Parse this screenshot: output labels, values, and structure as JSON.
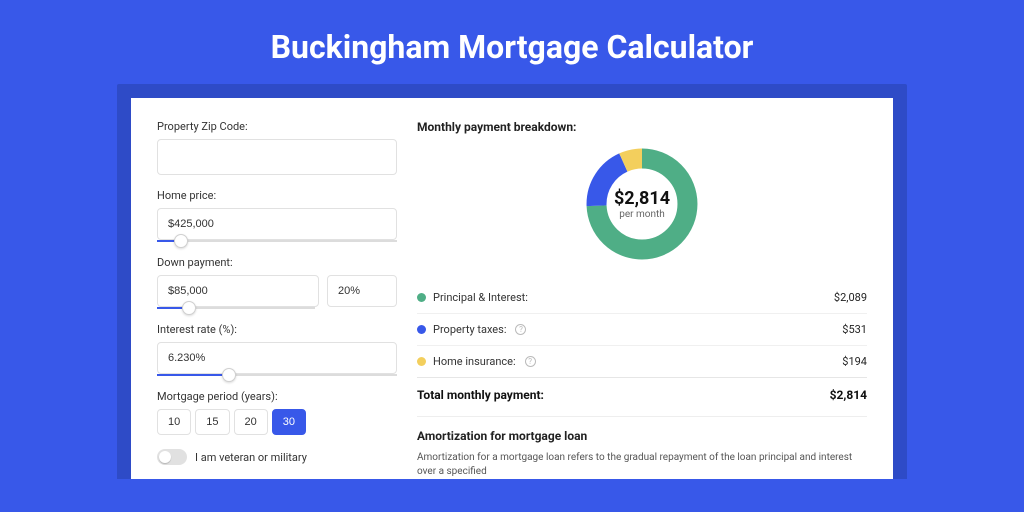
{
  "page_title": "Buckingham Mortgage Calculator",
  "colors": {
    "page_bg": "#3858e9",
    "band_bg": "#2e4bc7",
    "accent": "#3858e9",
    "principal": "#4fae86",
    "taxes": "#3858e9",
    "insurance": "#f3cf5d"
  },
  "form": {
    "zip_label": "Property Zip Code:",
    "zip_value": "",
    "home_price_label": "Home price:",
    "home_price_value": "$425,000",
    "home_price_slider_pct": 10,
    "down_payment_label": "Down payment:",
    "down_payment_value": "$85,000",
    "down_payment_pct": "20%",
    "down_payment_slider_pct": 20,
    "interest_label": "Interest rate (%):",
    "interest_value": "6.230%",
    "interest_slider_pct": 30,
    "period_label": "Mortgage period (years):",
    "period_options": [
      "10",
      "15",
      "20",
      "30"
    ],
    "period_selected_index": 3,
    "veteran_label": "I am veteran or military",
    "veteran_on": false
  },
  "breakdown": {
    "title": "Monthly payment breakdown:",
    "donut_amount": "$2,814",
    "donut_sub": "per month",
    "slices": [
      {
        "label": "Principal & Interest:",
        "color": "#4fae86",
        "amount": "$2,089",
        "value": 2089,
        "help": false
      },
      {
        "label": "Property taxes:",
        "color": "#3858e9",
        "amount": "$531",
        "value": 531,
        "help": true
      },
      {
        "label": "Home insurance:",
        "color": "#f3cf5d",
        "amount": "$194",
        "value": 194,
        "help": true
      }
    ],
    "total_label": "Total monthly payment:",
    "total_amount": "$2,814"
  },
  "amortization": {
    "title": "Amortization for mortgage loan",
    "text": "Amortization for a mortgage loan refers to the gradual repayment of the loan principal and interest over a specified"
  }
}
